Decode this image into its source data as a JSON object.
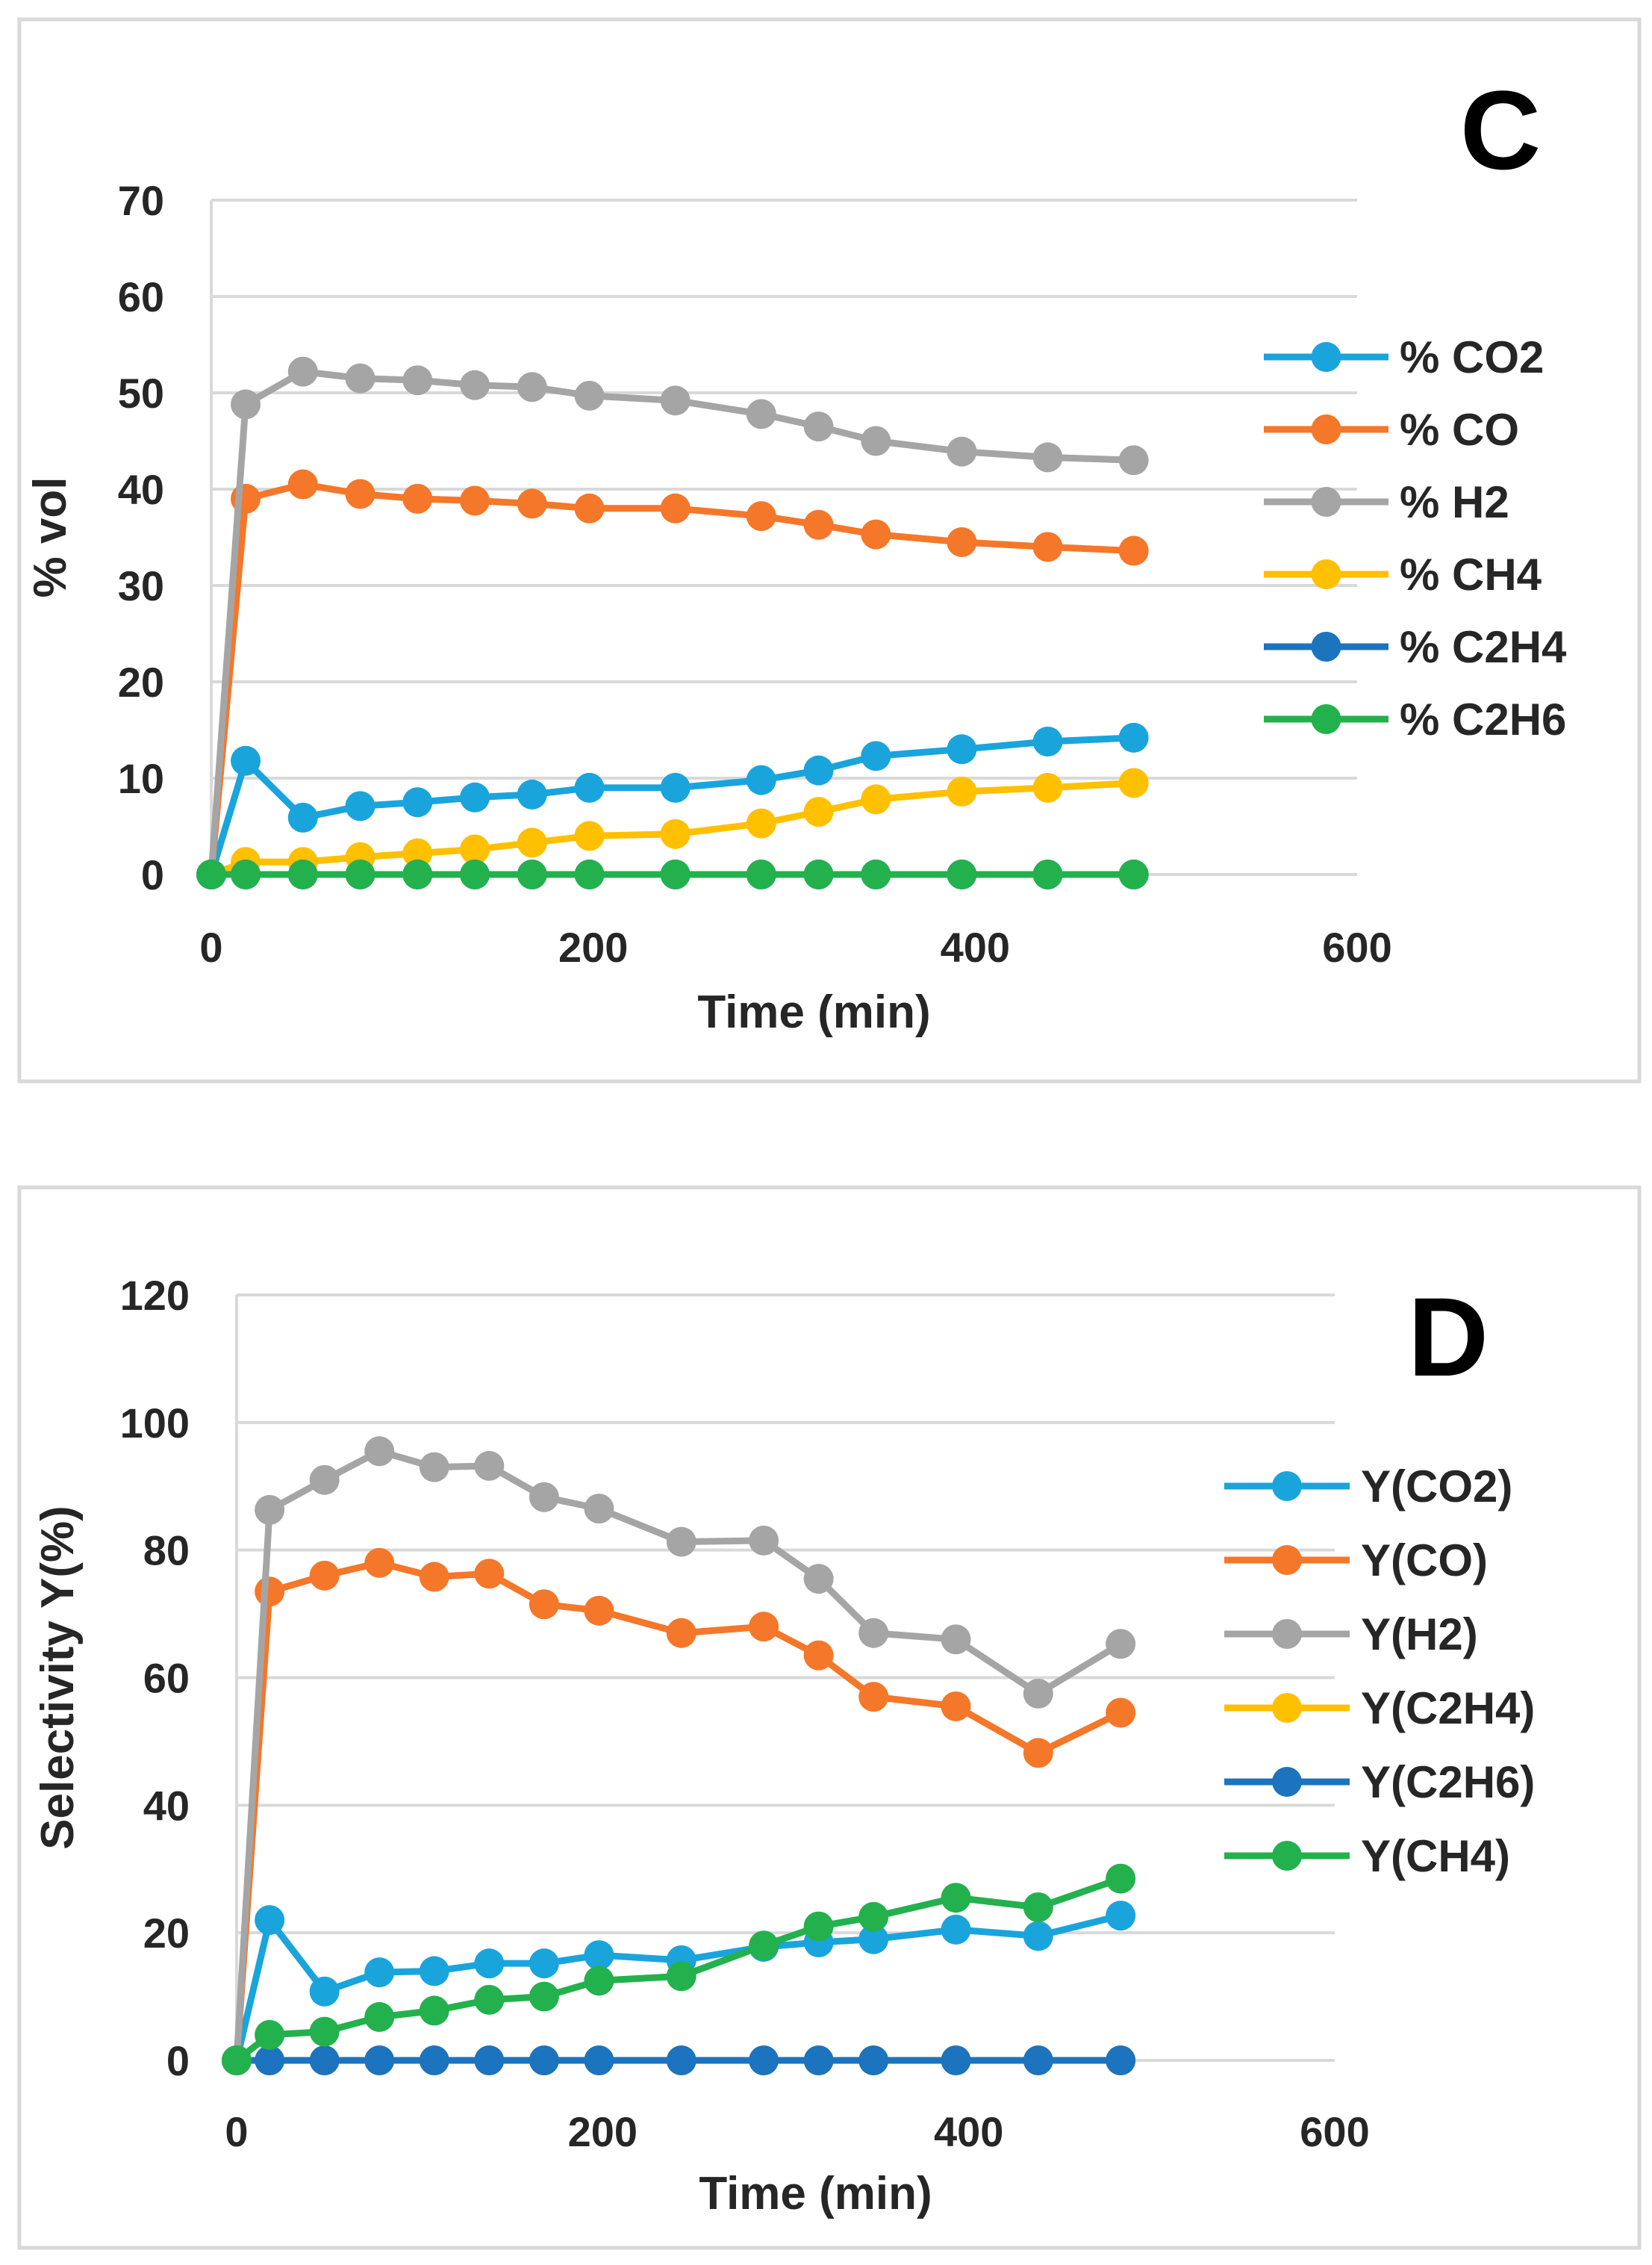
{
  "chart_data": [
    {
      "type": "line",
      "panel_label": "C",
      "title": "",
      "xlabel": "Time (min)",
      "ylabel": "% vol",
      "xlim": [
        0,
        600
      ],
      "ylim": [
        0,
        70
      ],
      "xticks": [
        0,
        200,
        400,
        600
      ],
      "yticks": [
        0,
        10,
        20,
        30,
        40,
        50,
        60,
        70
      ],
      "xtick_labels": [
        "0",
        "200",
        "400",
        "600"
      ],
      "ytick_labels": [
        "0",
        "10",
        "20",
        "30",
        "40",
        "50",
        "60",
        "70"
      ],
      "grid": "horizontal",
      "legend_position": "right",
      "x": [
        0,
        18,
        48,
        78,
        108,
        138,
        168,
        198,
        243,
        288,
        318,
        348,
        393,
        438,
        483
      ],
      "series": [
        {
          "name": "% CO2",
          "color": "#1aa4dc",
          "values": [
            0,
            11.8,
            5.9,
            7.1,
            7.5,
            8.0,
            8.3,
            9.0,
            9.0,
            9.8,
            10.8,
            12.3,
            13.0,
            13.8,
            14.2
          ]
        },
        {
          "name": "% CO",
          "color": "#f4772a",
          "values": [
            0,
            39.0,
            40.5,
            39.5,
            39.0,
            38.8,
            38.5,
            38.0,
            38.0,
            37.2,
            36.3,
            35.3,
            34.5,
            34.0,
            33.6
          ]
        },
        {
          "name": "% H2",
          "color": "#a5a5a5",
          "values": [
            0,
            48.8,
            52.2,
            51.5,
            51.3,
            50.8,
            50.6,
            49.7,
            49.2,
            47.8,
            46.5,
            45.0,
            43.9,
            43.3,
            43.0
          ]
        },
        {
          "name": "% CH4",
          "color": "#ffc000",
          "values": [
            0,
            1.3,
            1.3,
            1.8,
            2.2,
            2.6,
            3.3,
            4.0,
            4.2,
            5.3,
            6.5,
            7.8,
            8.6,
            9.0,
            9.5
          ]
        },
        {
          "name": "% C2H4",
          "color": "#1c73be",
          "values": [
            0,
            0,
            0,
            0,
            0,
            0,
            0,
            0,
            0,
            0,
            0,
            0,
            0,
            0,
            0
          ]
        },
        {
          "name": "% C2H6",
          "color": "#23b14d",
          "values": [
            0,
            0,
            0,
            0,
            0,
            0,
            0,
            0,
            0,
            0,
            0,
            0,
            0,
            0,
            0
          ]
        }
      ]
    },
    {
      "type": "line",
      "panel_label": "D",
      "title": "",
      "xlabel": "Time (min)",
      "ylabel": "Selectivity  Y(%)",
      "xlim": [
        0,
        600
      ],
      "ylim": [
        0,
        120
      ],
      "xticks": [
        0,
        200,
        400,
        600
      ],
      "yticks": [
        0,
        20,
        40,
        60,
        80,
        100,
        120
      ],
      "xtick_labels": [
        "0",
        "200",
        "400",
        "600"
      ],
      "ytick_labels": [
        "0",
        "20",
        "40",
        "60",
        "80",
        "100",
        "120"
      ],
      "grid": "horizontal",
      "legend_position": "right",
      "x": [
        0,
        18,
        48,
        78,
        108,
        138,
        168,
        198,
        243,
        288,
        318,
        348,
        393,
        438,
        483
      ],
      "series": [
        {
          "name": "Y(CO2)",
          "color": "#1aa4dc",
          "values": [
            0,
            22.0,
            10.8,
            13.8,
            14.0,
            15.2,
            15.2,
            16.5,
            15.7,
            17.8,
            18.5,
            19.0,
            20.5,
            19.5,
            22.7
          ]
        },
        {
          "name": "Y(CO)",
          "color": "#f4772a",
          "values": [
            0,
            73.5,
            76.0,
            78.0,
            75.8,
            76.3,
            71.5,
            70.5,
            67.0,
            68.0,
            63.5,
            57.0,
            55.5,
            48.2,
            54.5
          ]
        },
        {
          "name": "Y(H2)",
          "color": "#a5a5a5",
          "values": [
            0,
            86.3,
            91.0,
            95.5,
            93.0,
            93.2,
            88.3,
            86.5,
            81.3,
            81.5,
            75.5,
            67.0,
            66.0,
            57.5,
            65.3
          ]
        },
        {
          "name": "Y(C2H4)",
          "color": "#ffc000",
          "values": [
            0,
            0,
            0,
            0,
            0,
            0,
            0,
            0,
            0,
            0,
            0,
            0,
            0,
            0,
            0
          ]
        },
        {
          "name": "Y(C2H6)",
          "color": "#1c73be",
          "values": [
            0,
            0,
            0,
            0,
            0,
            0,
            0,
            0,
            0,
            0,
            0,
            0,
            0,
            0,
            0
          ]
        },
        {
          "name": "Y(CH4)",
          "color": "#23b14d",
          "values": [
            0,
            4.0,
            4.5,
            6.8,
            7.8,
            9.5,
            10.0,
            12.5,
            13.2,
            18.0,
            21.0,
            22.5,
            25.5,
            24.0,
            28.5
          ]
        }
      ]
    }
  ]
}
